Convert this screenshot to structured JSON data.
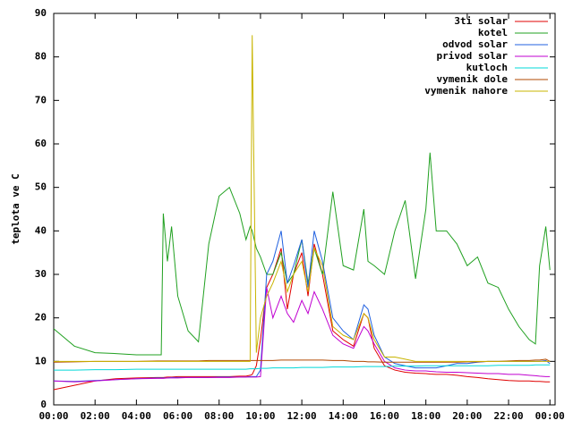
{
  "chart_data": {
    "type": "line",
    "y_label": "teplota ve C",
    "x": [
      0,
      1,
      2,
      3,
      4,
      5,
      5.2,
      5.3,
      5.5,
      5.7,
      6,
      6.5,
      7,
      7.5,
      8,
      8.5,
      9,
      9.3,
      9.5,
      9.6,
      9.8,
      10,
      10.3,
      10.6,
      11,
      11.3,
      11.6,
      12,
      12.3,
      12.6,
      13,
      13.5,
      14,
      14.5,
      15,
      15.2,
      15.5,
      16,
      16.5,
      17,
      17.5,
      18,
      18.2,
      18.5,
      19,
      19.5,
      20,
      20.5,
      21,
      21.5,
      22,
      22.5,
      23,
      23.3,
      23.5,
      23.8,
      24
    ],
    "xlim": [
      0,
      24.25
    ],
    "xticks": [
      {
        "value": 0,
        "label": "00:00"
      },
      {
        "value": 2,
        "label": "02:00"
      },
      {
        "value": 4,
        "label": "04:00"
      },
      {
        "value": 6,
        "label": "06:00"
      },
      {
        "value": 8,
        "label": "08:00"
      },
      {
        "value": 10,
        "label": "10:00"
      },
      {
        "value": 12,
        "label": "12:00"
      },
      {
        "value": 14,
        "label": "14:00"
      },
      {
        "value": 16,
        "label": "16:00"
      },
      {
        "value": 18,
        "label": "18:00"
      },
      {
        "value": 20,
        "label": "20:00"
      },
      {
        "value": 22,
        "label": "22:00"
      },
      {
        "value": 24,
        "label": "00:00"
      }
    ],
    "ylim": [
      0,
      90
    ],
    "yticks": [
      0,
      10,
      20,
      30,
      40,
      50,
      60,
      70,
      80,
      90
    ],
    "legend": "top-right",
    "series": [
      {
        "name": "3ti solar",
        "color": "#e00000",
        "values": [
          3.5,
          4.5,
          5.5,
          6,
          6.2,
          6.3,
          6.3,
          6.3,
          6.4,
          6.4,
          6.5,
          6.5,
          6.5,
          6.5,
          6.5,
          6.5,
          6.6,
          6.6,
          6.8,
          7,
          9,
          15,
          27,
          30,
          36,
          22,
          30,
          35,
          25,
          37,
          30,
          17,
          15,
          13.5,
          21,
          20,
          13,
          9,
          8,
          7.5,
          7.3,
          7.2,
          7.1,
          7,
          7,
          6.8,
          6.5,
          6.3,
          6,
          5.8,
          5.6,
          5.5,
          5.5,
          5.4,
          5.4,
          5.3,
          5.3
        ]
      },
      {
        "name": "kotel",
        "color": "#20a020",
        "values": [
          17.5,
          13.5,
          12,
          11.8,
          11.5,
          11.5,
          11.5,
          44,
          33,
          41,
          25,
          17,
          14.5,
          37,
          48,
          50,
          44,
          38,
          41,
          40,
          36,
          34,
          30,
          30,
          35,
          28,
          30,
          38,
          28,
          36,
          30,
          49,
          32,
          31,
          45,
          33,
          32,
          30,
          40,
          47,
          29,
          45,
          58,
          40,
          40,
          37,
          32,
          34,
          28,
          27,
          22,
          18,
          15,
          14,
          32,
          41,
          31
        ]
      },
      {
        "name": "odvod solar",
        "color": "#2060e0",
        "values": [
          5.5,
          5.4,
          5.6,
          5.8,
          6,
          6.2,
          6.2,
          6.2,
          6.2,
          6.3,
          6.3,
          6.3,
          6.3,
          6.3,
          6.4,
          6.4,
          6.4,
          6.4,
          6.5,
          6.5,
          6.5,
          8,
          30,
          33,
          40,
          28,
          32,
          38,
          27,
          40,
          33,
          20,
          17,
          15,
          23,
          22,
          16,
          11,
          9.5,
          9,
          8.5,
          8.5,
          8.5,
          8.5,
          9,
          9.5,
          9.5,
          9.8,
          10,
          10,
          10,
          10,
          10,
          10,
          10,
          10.2,
          9.5
        ]
      },
      {
        "name": "privod solar",
        "color": "#c000d0",
        "values": [
          5.5,
          5.3,
          5.5,
          5.8,
          6,
          6.1,
          6.1,
          6.1,
          6.2,
          6.2,
          6.2,
          6.3,
          6.3,
          6.3,
          6.3,
          6.3,
          6.4,
          6.4,
          6.4,
          6.4,
          6.4,
          6.5,
          27,
          20,
          25,
          21,
          19,
          24,
          21,
          26,
          22,
          16,
          14,
          13,
          18,
          17,
          14,
          10,
          8.5,
          8,
          7.8,
          7.8,
          7.7,
          7.6,
          7.5,
          7.5,
          7.4,
          7.3,
          7.2,
          7.2,
          7,
          7,
          6.8,
          6.7,
          6.6,
          6.5,
          6.5
        ]
      },
      {
        "name": "kutloch",
        "color": "#00d8d8",
        "values": [
          8,
          8,
          8.1,
          8.1,
          8.2,
          8.2,
          8.2,
          8.2,
          8.2,
          8.2,
          8.2,
          8.2,
          8.2,
          8.2,
          8.2,
          8.2,
          8.2,
          8.2,
          8.3,
          8.3,
          8.3,
          8.4,
          8.4,
          8.5,
          8.5,
          8.5,
          8.5,
          8.6,
          8.6,
          8.6,
          8.6,
          8.7,
          8.7,
          8.7,
          8.8,
          8.8,
          8.8,
          8.8,
          8.9,
          8.9,
          8.9,
          9,
          9,
          9,
          9,
          9,
          9,
          9,
          9,
          9.1,
          9.1,
          9.1,
          9.1,
          9.2,
          9.2,
          9.2,
          9.2
        ]
      },
      {
        "name": "vymenik dole",
        "color": "#b04800",
        "values": [
          9.8,
          9.9,
          10,
          10,
          10,
          10.1,
          10.1,
          10.1,
          10.1,
          10.1,
          10.1,
          10.1,
          10.1,
          10.2,
          10.2,
          10.2,
          10.2,
          10.2,
          10.2,
          10.2,
          10.2,
          10.2,
          10.2,
          10.2,
          10.3,
          10.3,
          10.3,
          10.3,
          10.3,
          10.3,
          10.3,
          10.2,
          10.2,
          10,
          10,
          9.9,
          9.9,
          9.8,
          9.8,
          9.8,
          9.8,
          9.8,
          9.8,
          9.8,
          9.8,
          9.8,
          9.9,
          9.9,
          10,
          10,
          10.1,
          10.2,
          10.2,
          10.3,
          10.3,
          10.5,
          10
        ]
      },
      {
        "name": "vymenik nahore",
        "color": "#c8b400",
        "values": [
          10,
          10,
          10,
          10,
          10,
          10,
          10,
          10,
          10,
          10,
          10,
          10,
          10,
          10,
          10,
          10,
          10,
          10,
          10,
          85,
          12,
          20,
          25,
          28,
          33,
          26,
          30,
          33,
          26,
          36,
          32,
          18,
          16,
          15,
          21,
          20,
          15,
          11,
          11,
          10.5,
          10,
          10,
          10,
          10,
          10,
          10,
          10,
          10,
          10,
          10,
          10,
          10,
          10,
          10,
          10,
          10,
          10
        ]
      }
    ]
  }
}
